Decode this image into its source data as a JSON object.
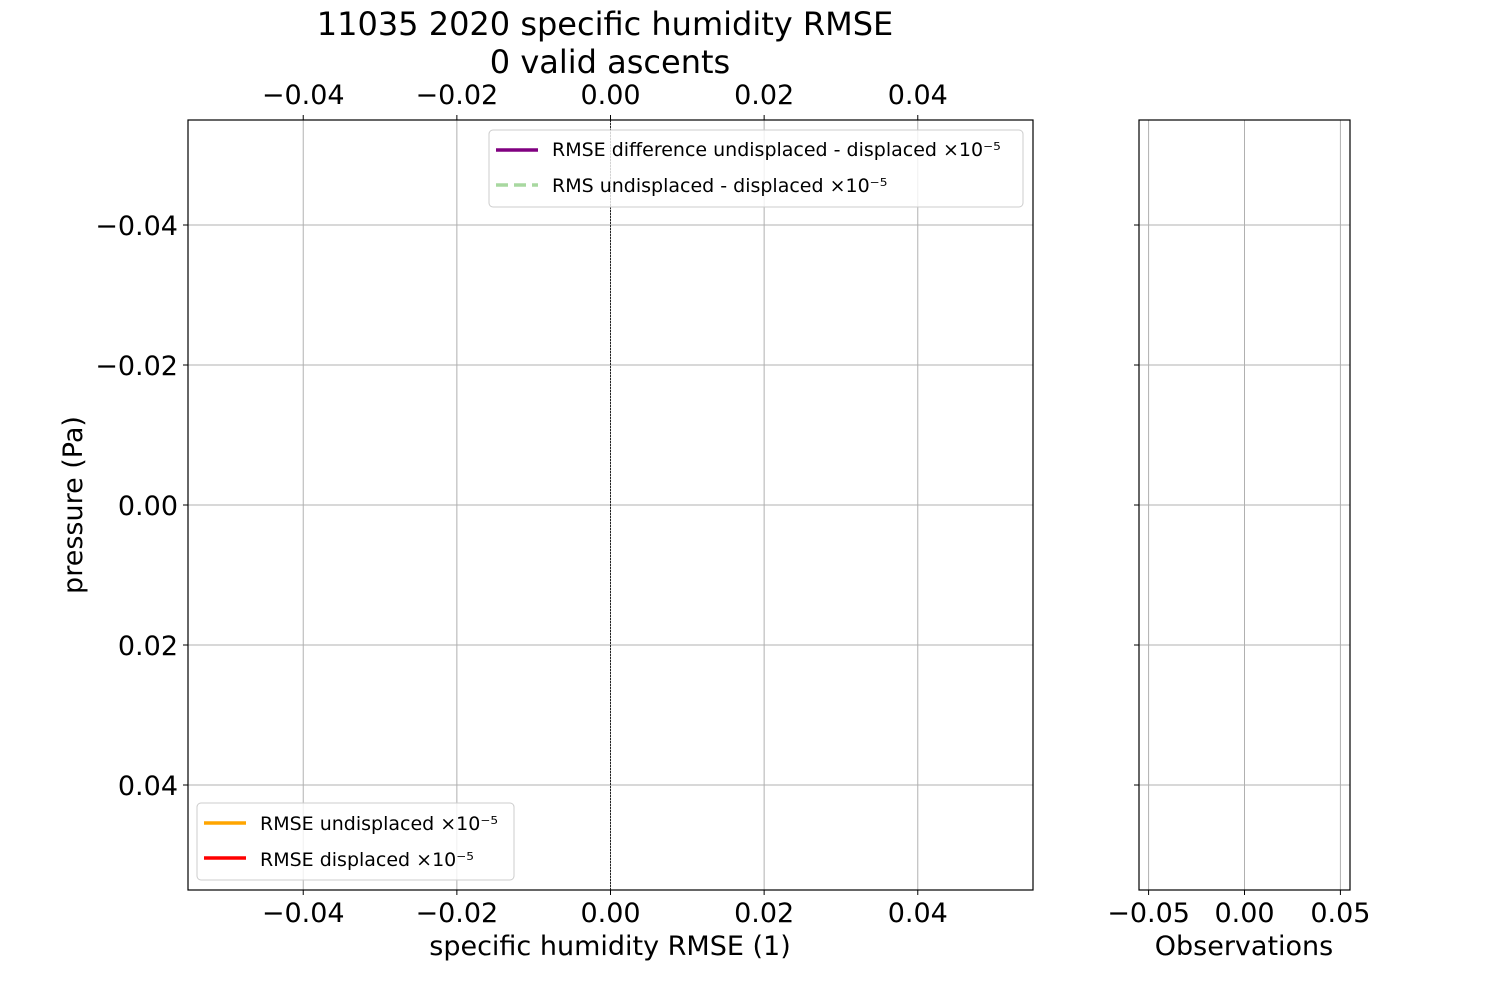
{
  "chart_data": [
    {
      "type": "line",
      "title": "11035 2020 specific humidity RMSE",
      "subtitle": "0 valid ascents",
      "xlabel": "specific humidity RMSE (1)",
      "ylabel": "pressure (Pa)",
      "xlim": [
        -0.055,
        0.055
      ],
      "ylim": [
        -0.055,
        0.055
      ],
      "y_inverted": true,
      "grid": true,
      "x_ticks": [
        "−0.04",
        "−0.02",
        "0.00",
        "0.02",
        "0.04"
      ],
      "x_tick_values": [
        -0.04,
        -0.02,
        0.0,
        0.02,
        0.04
      ],
      "y_ticks": [
        "−0.04",
        "−0.02",
        "0.00",
        "0.02",
        "0.04"
      ],
      "y_tick_values": [
        -0.04,
        -0.02,
        0.0,
        0.02,
        0.04
      ],
      "top_axis_ticks": [
        "−0.04",
        "−0.02",
        "0.00",
        "0.02",
        "0.04"
      ],
      "series": [
        {
          "name": "RMSE difference undisplaced - displaced ×10⁻⁵",
          "color": "#800080",
          "style": "solid",
          "x": [],
          "y": []
        },
        {
          "name": "RMS undisplaced - displaced ×10⁻⁵",
          "color": "#a8d8a0",
          "style": "dashed",
          "x": [],
          "y": []
        },
        {
          "name": "RMSE undisplaced ×10⁻⁵",
          "color": "#ffa500",
          "style": "solid",
          "x": [],
          "y": []
        },
        {
          "name": "RMSE displaced ×10⁻⁵",
          "color": "#ff0000",
          "style": "solid",
          "x": [],
          "y": []
        }
      ],
      "legends": [
        {
          "placement": "upper-right",
          "entries": [
            0,
            1
          ]
        },
        {
          "placement": "lower-left",
          "entries": [
            2,
            3
          ]
        }
      ],
      "reference_line": {
        "x": 0.0
      }
    },
    {
      "type": "line",
      "xlabel": "Observations",
      "xlim": [
        -0.055,
        0.055
      ],
      "ylim": [
        -0.055,
        0.055
      ],
      "grid": true,
      "x_ticks": [
        "−0.05",
        "0.00",
        "0.05"
      ],
      "x_tick_values": [
        -0.05,
        0.0,
        0.05
      ],
      "series": []
    }
  ]
}
